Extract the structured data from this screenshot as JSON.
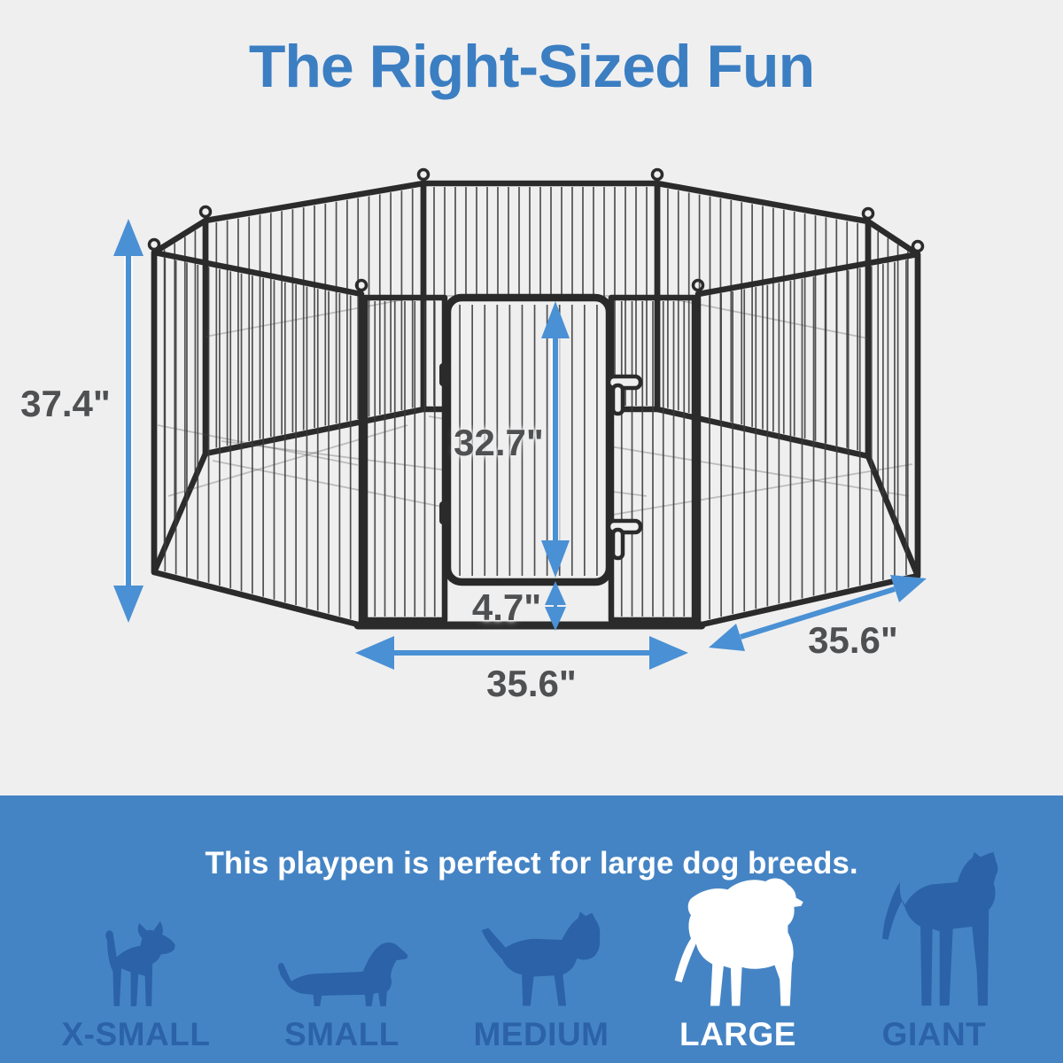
{
  "title": "The Right-Sized Fun",
  "dimensions": {
    "height": "37.4\"",
    "door_height": "32.7\"",
    "bottom_gap": "4.7\"",
    "front_width": "35.6\"",
    "side_width": "35.6\""
  },
  "banner": {
    "headline": "This playpen is perfect for large dog breeds.",
    "highlighted_size": "LARGE"
  },
  "sizes": [
    {
      "label": "X-SMALL",
      "icon": "chihuahua-dog-icon",
      "highlighted": false
    },
    {
      "label": "SMALL",
      "icon": "dachshund-dog-icon",
      "highlighted": false
    },
    {
      "label": "MEDIUM",
      "icon": "bull-terrier-dog-icon",
      "highlighted": false
    },
    {
      "label": "LARGE",
      "icon": "golden-retriever-dog-icon",
      "highlighted": true
    },
    {
      "label": "GIANT",
      "icon": "great-dane-dog-icon",
      "highlighted": false
    }
  ],
  "colors": {
    "title_blue": "#3b7ec2",
    "arrow_blue": "#4a90d4",
    "banner_blue": "#4584c4",
    "dog_blue": "#2b62a8",
    "dimension_text": "#4f5051",
    "background": "#efeff0"
  }
}
